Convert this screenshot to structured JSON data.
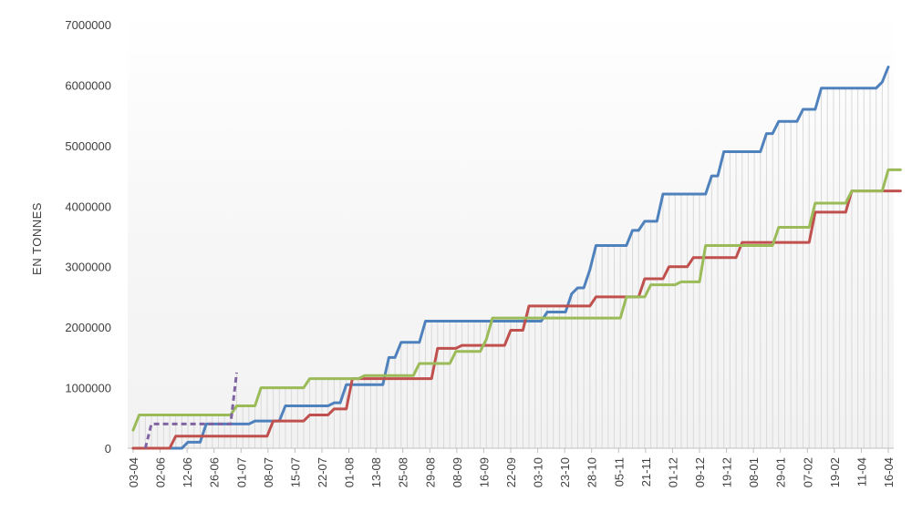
{
  "chart_data": {
    "type": "line",
    "title": "",
    "xlabel": "",
    "ylabel": "EN TONNES",
    "ylim": [
      0,
      7000000
    ],
    "yticks": [
      0,
      1000000,
      2000000,
      3000000,
      4000000,
      5000000,
      6000000,
      7000000
    ],
    "xlabels": [
      "03-04",
      "02-06",
      "12-06",
      "26-06",
      "01-07",
      "08-07",
      "15-07",
      "22-07",
      "01-08",
      "13-08",
      "25-08",
      "29-08",
      "08-09",
      "16-09",
      "22-09",
      "03-10",
      "23-10",
      "28-10",
      "05-11",
      "21-11",
      "01-12",
      "09-12",
      "19-12",
      "08-01",
      "29-01",
      "07-02",
      "19-02",
      "11-04",
      "16-04"
    ],
    "grid": "vertical drop lines",
    "legend": "none",
    "colors": {
      "blue": "#4f81bd",
      "red": "#c0504d",
      "green": "#9bbb59",
      "purple": "#8064a2",
      "grid": "#d9d9d9",
      "axis": "#bfbfbf"
    },
    "series": [
      {
        "color": "#4f81bd",
        "style": "solid",
        "values": [
          0,
          0,
          0,
          0,
          0,
          0,
          0,
          0,
          0,
          100000,
          100000,
          100000,
          400000,
          400000,
          400000,
          400000,
          400000,
          400000,
          400000,
          400000,
          450000,
          450000,
          450000,
          450000,
          450000,
          700000,
          700000,
          700000,
          700000,
          700000,
          700000,
          700000,
          700000,
          750000,
          750000,
          1050000,
          1050000,
          1050000,
          1050000,
          1050000,
          1050000,
          1050000,
          1500000,
          1500000,
          1750000,
          1750000,
          1750000,
          1750000,
          2100000,
          2100000,
          2100000,
          2100000,
          2100000,
          2100000,
          2100000,
          2100000,
          2100000,
          2100000,
          2100000,
          2100000,
          2100000,
          2100000,
          2100000,
          2100000,
          2100000,
          2100000,
          2100000,
          2100000,
          2250000,
          2250000,
          2250000,
          2250000,
          2550000,
          2650000,
          2650000,
          2950000,
          3350000,
          3350000,
          3350000,
          3350000,
          3350000,
          3350000,
          3600000,
          3600000,
          3750000,
          3750000,
          3750000,
          4200000,
          4200000,
          4200000,
          4200000,
          4200000,
          4200000,
          4200000,
          4200000,
          4500000,
          4500000,
          4900000,
          4900000,
          4900000,
          4900000,
          4900000,
          4900000,
          4900000,
          5200000,
          5200000,
          5400000,
          5400000,
          5400000,
          5400000,
          5600000,
          5600000,
          5600000,
          5950000,
          5950000,
          5950000,
          5950000,
          5950000,
          5950000,
          5950000,
          5950000,
          5950000,
          5950000,
          6050000,
          6300000
        ]
      },
      {
        "color": "#c0504d",
        "style": "solid",
        "values": [
          0,
          0,
          0,
          0,
          0,
          0,
          0,
          200000,
          200000,
          200000,
          200000,
          200000,
          200000,
          200000,
          200000,
          200000,
          200000,
          200000,
          200000,
          200000,
          200000,
          200000,
          200000,
          450000,
          450000,
          450000,
          450000,
          450000,
          450000,
          550000,
          550000,
          550000,
          550000,
          650000,
          650000,
          650000,
          1150000,
          1150000,
          1150000,
          1150000,
          1150000,
          1150000,
          1150000,
          1150000,
          1150000,
          1150000,
          1150000,
          1150000,
          1150000,
          1150000,
          1650000,
          1650000,
          1650000,
          1650000,
          1700000,
          1700000,
          1700000,
          1700000,
          1700000,
          1700000,
          1700000,
          1700000,
          1950000,
          1950000,
          1950000,
          2350000,
          2350000,
          2350000,
          2350000,
          2350000,
          2350000,
          2350000,
          2350000,
          2350000,
          2350000,
          2350000,
          2500000,
          2500000,
          2500000,
          2500000,
          2500000,
          2500000,
          2500000,
          2500000,
          2800000,
          2800000,
          2800000,
          2800000,
          3000000,
          3000000,
          3000000,
          3000000,
          3150000,
          3150000,
          3150000,
          3150000,
          3150000,
          3150000,
          3150000,
          3150000,
          3400000,
          3400000,
          3400000,
          3400000,
          3400000,
          3400000,
          3400000,
          3400000,
          3400000,
          3400000,
          3400000,
          3400000,
          3900000,
          3900000,
          3900000,
          3900000,
          3900000,
          3900000,
          4250000,
          4250000,
          4250000,
          4250000,
          4250000,
          4250000,
          4250000,
          4250000,
          4250000
        ]
      },
      {
        "color": "#9bbb59",
        "style": "solid",
        "values": [
          300000,
          550000,
          550000,
          550000,
          550000,
          550000,
          550000,
          550000,
          550000,
          550000,
          550000,
          550000,
          550000,
          550000,
          550000,
          550000,
          550000,
          700000,
          700000,
          700000,
          700000,
          1000000,
          1000000,
          1000000,
          1000000,
          1000000,
          1000000,
          1000000,
          1000000,
          1150000,
          1150000,
          1150000,
          1150000,
          1150000,
          1150000,
          1150000,
          1150000,
          1150000,
          1200000,
          1200000,
          1200000,
          1200000,
          1200000,
          1200000,
          1200000,
          1200000,
          1200000,
          1400000,
          1400000,
          1400000,
          1400000,
          1400000,
          1400000,
          1600000,
          1600000,
          1600000,
          1600000,
          1600000,
          1800000,
          2150000,
          2150000,
          2150000,
          2150000,
          2150000,
          2150000,
          2150000,
          2150000,
          2150000,
          2150000,
          2150000,
          2150000,
          2150000,
          2150000,
          2150000,
          2150000,
          2150000,
          2150000,
          2150000,
          2150000,
          2150000,
          2150000,
          2500000,
          2500000,
          2500000,
          2500000,
          2700000,
          2700000,
          2700000,
          2700000,
          2700000,
          2750000,
          2750000,
          2750000,
          2750000,
          3350000,
          3350000,
          3350000,
          3350000,
          3350000,
          3350000,
          3350000,
          3350000,
          3350000,
          3350000,
          3350000,
          3350000,
          3650000,
          3650000,
          3650000,
          3650000,
          3650000,
          3650000,
          4050000,
          4050000,
          4050000,
          4050000,
          4050000,
          4050000,
          4250000,
          4250000,
          4250000,
          4250000,
          4250000,
          4250000,
          4600000,
          4600000,
          4600000
        ]
      },
      {
        "color": "#8064a2",
        "style": "dashed",
        "values": [
          null,
          null,
          0,
          400000,
          400000,
          400000,
          400000,
          400000,
          400000,
          400000,
          400000,
          400000,
          400000,
          400000,
          400000,
          400000,
          400000,
          1250000
        ]
      }
    ]
  }
}
